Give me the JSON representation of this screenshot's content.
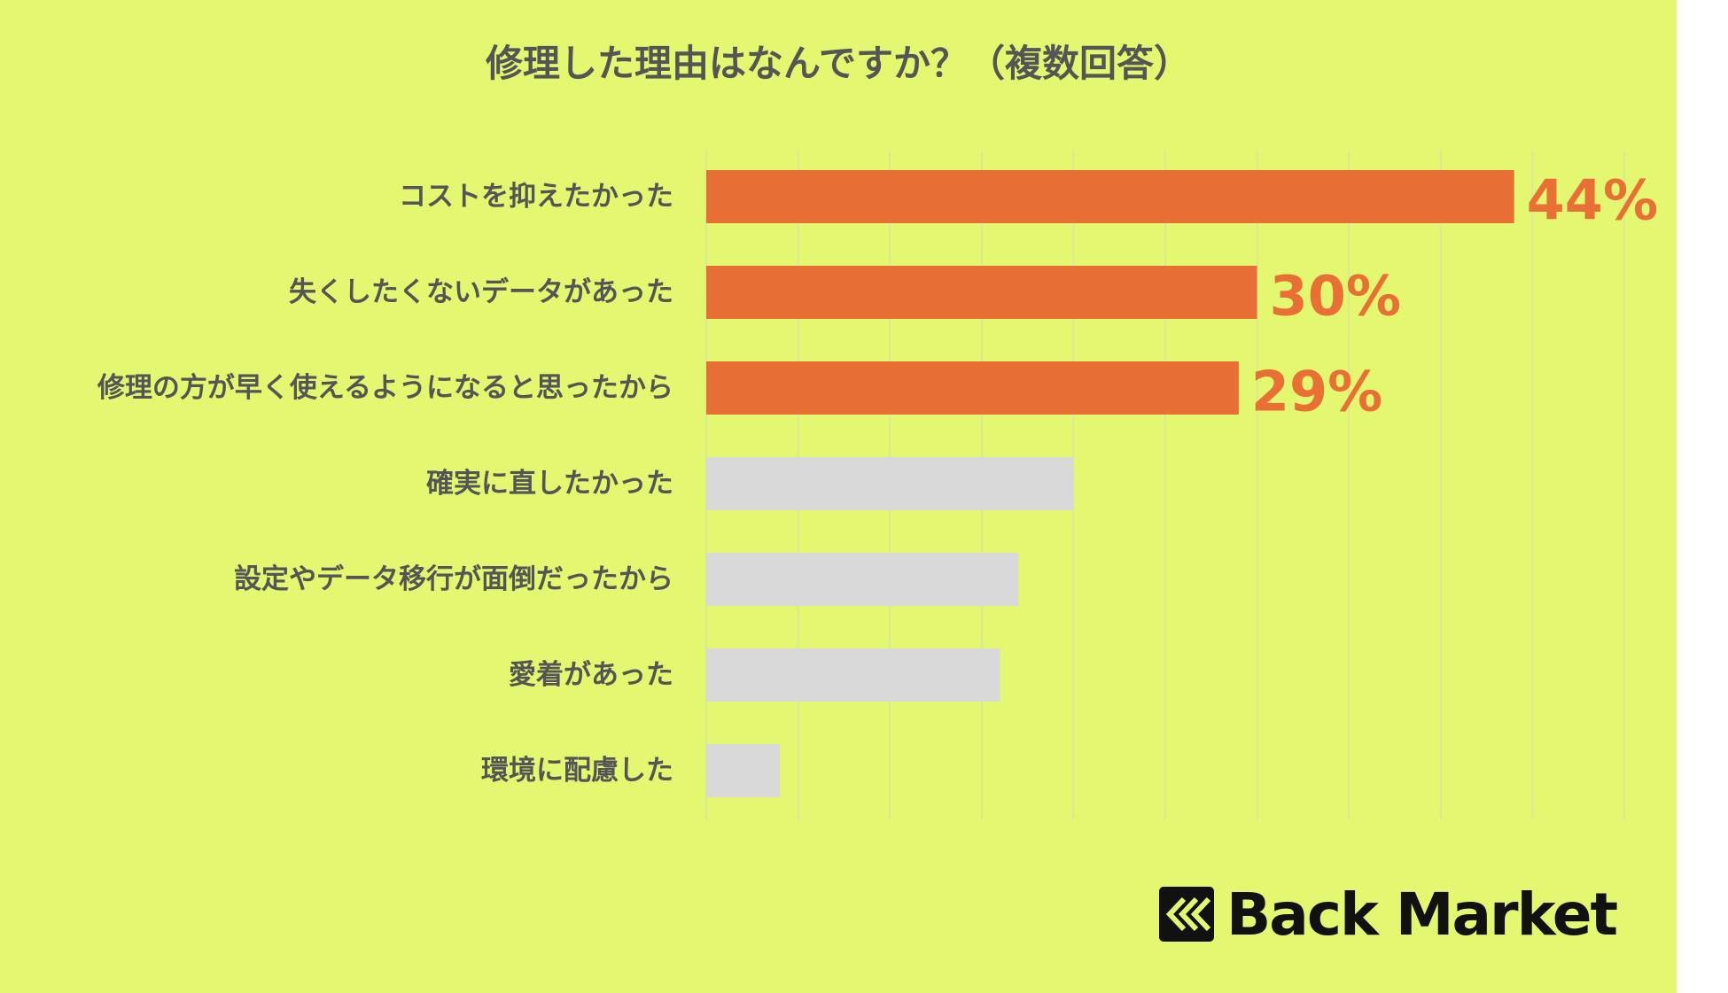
{
  "chart_data": {
    "type": "bar",
    "orientation": "horizontal",
    "title": "修理した理由はなんですか？（複数回答）",
    "categories": [
      "コストを抑えたかった",
      "失くしたくないデータがあった",
      "修理の方が早く使えるようになると思ったから",
      "確実に直したかった",
      "設定やデータ移行が面倒だったから",
      "愛着があった",
      "環境に配慮した"
    ],
    "values": [
      44,
      30,
      29,
      20,
      17,
      16,
      4
    ],
    "value_labels": [
      "44%",
      "30%",
      "29%",
      "",
      "",
      "",
      ""
    ],
    "highlighted": [
      true,
      true,
      true,
      false,
      false,
      false,
      false
    ],
    "xlim": [
      0,
      50
    ],
    "grid": true,
    "colors": {
      "highlight": "#e97034",
      "other": "#d9d9d9",
      "background": "#e3f870",
      "grid": "#d8e4a0",
      "label": "#555555"
    }
  },
  "logo": {
    "text": "Back Market",
    "icon": "back-market-chevrons-icon"
  }
}
